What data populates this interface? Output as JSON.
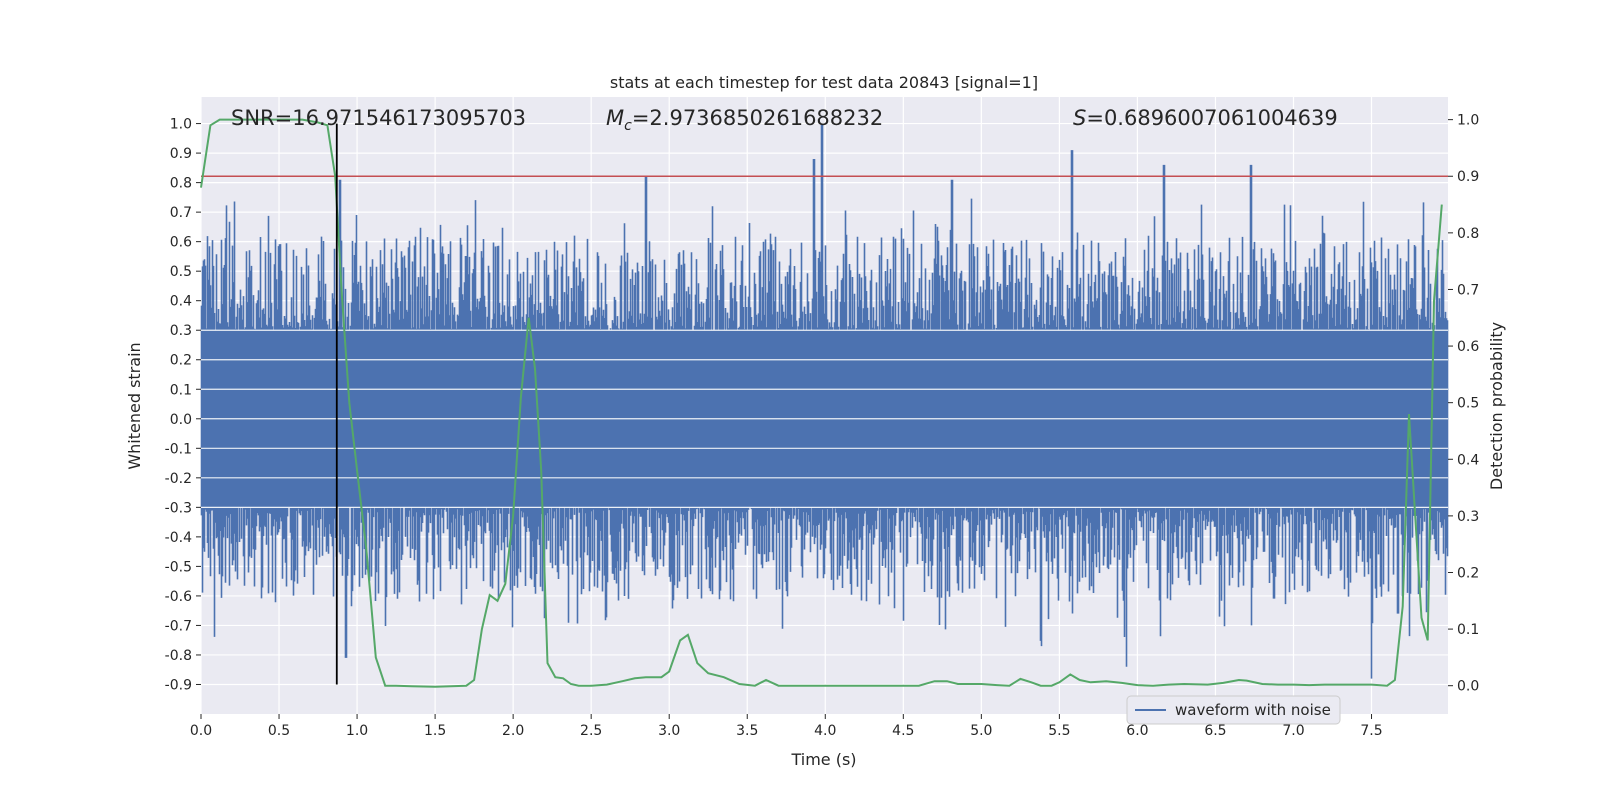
{
  "chart_data": {
    "type": "line",
    "title": "stats at each timestep for test data 20843 [signal=1]",
    "xlabel": "Time (s)",
    "ylabel_left": "Whitened strain",
    "ylabel_right": "Detection probability",
    "xlim": [
      0.0,
      7.99
    ],
    "ylim_left": [
      -1.0,
      1.09
    ],
    "ylim_right": [
      -0.05,
      1.04
    ],
    "x_ticks": [
      0.0,
      0.5,
      1.0,
      1.5,
      2.0,
      2.5,
      3.0,
      3.5,
      4.0,
      4.5,
      5.0,
      5.5,
      6.0,
      6.5,
      7.0,
      7.5
    ],
    "x_tick_labels": [
      "0.0",
      "0.5",
      "1.0",
      "1.5",
      "2.0",
      "2.5",
      "3.0",
      "3.5",
      "4.0",
      "4.5",
      "5.0",
      "5.5",
      "6.0",
      "6.5",
      "7.0",
      "7.5"
    ],
    "y_left_ticks": [
      1.0,
      0.9,
      0.8,
      0.7,
      0.6,
      0.5,
      0.4,
      0.3,
      0.2,
      0.1,
      0.0,
      -0.1,
      -0.2,
      -0.3,
      -0.4,
      -0.5,
      -0.6,
      -0.7,
      -0.8,
      -0.9
    ],
    "y_left_tick_labels": [
      "1.0",
      "0.9",
      "0.8",
      "0.7",
      "0.6",
      "0.5",
      "0.4",
      "0.3",
      "0.2",
      "0.1",
      "0.0",
      "-0.1",
      "-0.2",
      "-0.3",
      "-0.4",
      "-0.5",
      "-0.6",
      "-0.7",
      "-0.8",
      "-0.9"
    ],
    "y_right_ticks": [
      1.0,
      0.9,
      0.8,
      0.7,
      0.6,
      0.5,
      0.4,
      0.3,
      0.2,
      0.1,
      0.0
    ],
    "y_right_tick_labels": [
      "1.0",
      "0.9",
      "0.8",
      "0.7",
      "0.6",
      "0.5",
      "0.4",
      "0.3",
      "0.2",
      "0.1",
      "0.0"
    ],
    "annotations": {
      "snr": "SNR=16.971546173095703",
      "mc_symbol": "M",
      "mc_subscript": "c",
      "mc_value": "=2.9736850261688232",
      "s_symbol": "S",
      "s_value": "=0.6896007061004639"
    },
    "legend": {
      "label": "waveform with noise",
      "position": "lower-center-right"
    },
    "threshold_line": {
      "axis": "right",
      "value": 0.9,
      "color": "#c44e52"
    },
    "marker_line": {
      "x": 0.87,
      "y_from": -0.9,
      "y_to": 1.0,
      "color": "#000000"
    },
    "waveform": {
      "name": "waveform with noise",
      "color": "#4c72b0",
      "envelope_core": 0.3,
      "typical_peak": 0.6,
      "max_peak": 1.0,
      "min_trough": -0.9
    },
    "detection_probability": {
      "name": "detection probability",
      "axis": "right",
      "color": "#55a868",
      "x": [
        0.0,
        0.06,
        0.12,
        0.25,
        0.5,
        0.65,
        0.75,
        0.81,
        0.86,
        0.9,
        0.95,
        1.0,
        1.06,
        1.12,
        1.18,
        1.25,
        1.35,
        1.5,
        1.6,
        1.7,
        1.75,
        1.8,
        1.85,
        1.9,
        1.95,
        2.0,
        2.05,
        2.1,
        2.14,
        2.18,
        2.22,
        2.27,
        2.32,
        2.37,
        2.42,
        2.5,
        2.6,
        2.7,
        2.78,
        2.85,
        2.95,
        3.0,
        3.07,
        3.12,
        3.18,
        3.25,
        3.35,
        3.45,
        3.55,
        3.62,
        3.7,
        3.8,
        4.0,
        4.2,
        4.4,
        4.6,
        4.7,
        4.78,
        4.85,
        5.0,
        5.1,
        5.18,
        5.25,
        5.32,
        5.38,
        5.45,
        5.5,
        5.57,
        5.63,
        5.7,
        5.8,
        5.9,
        6.0,
        6.1,
        6.2,
        6.3,
        6.45,
        6.55,
        6.65,
        6.7,
        6.8,
        6.9,
        7.0,
        7.1,
        7.2,
        7.3,
        7.4,
        7.5,
        7.6,
        7.65,
        7.7,
        7.74,
        7.78,
        7.82,
        7.86,
        7.9,
        7.95
      ],
      "y": [
        0.88,
        0.99,
        1.0,
        1.0,
        1.0,
        1.0,
        0.995,
        0.99,
        0.9,
        0.7,
        0.5,
        0.38,
        0.24,
        0.05,
        0.0,
        0.0,
        -0.001,
        -0.002,
        -0.001,
        0.0,
        0.01,
        0.1,
        0.16,
        0.15,
        0.18,
        0.3,
        0.51,
        0.65,
        0.56,
        0.38,
        0.04,
        0.015,
        0.013,
        0.003,
        0.0,
        0.0,
        0.002,
        0.008,
        0.013,
        0.015,
        0.015,
        0.025,
        0.08,
        0.09,
        0.04,
        0.022,
        0.015,
        0.003,
        0.0,
        0.01,
        0.0,
        0.0,
        0.0,
        0.0,
        0.0,
        0.0,
        0.008,
        0.008,
        0.003,
        0.003,
        0.001,
        0.0,
        0.012,
        0.006,
        0.0,
        0.0,
        0.006,
        0.02,
        0.01,
        0.006,
        0.008,
        0.005,
        0.001,
        0.0,
        0.002,
        0.003,
        0.002,
        0.005,
        0.01,
        0.009,
        0.003,
        0.002,
        0.002,
        0.001,
        0.002,
        0.002,
        0.002,
        0.002,
        0.0,
        0.01,
        0.14,
        0.48,
        0.3,
        0.12,
        0.08,
        0.68,
        0.85
      ]
    }
  }
}
